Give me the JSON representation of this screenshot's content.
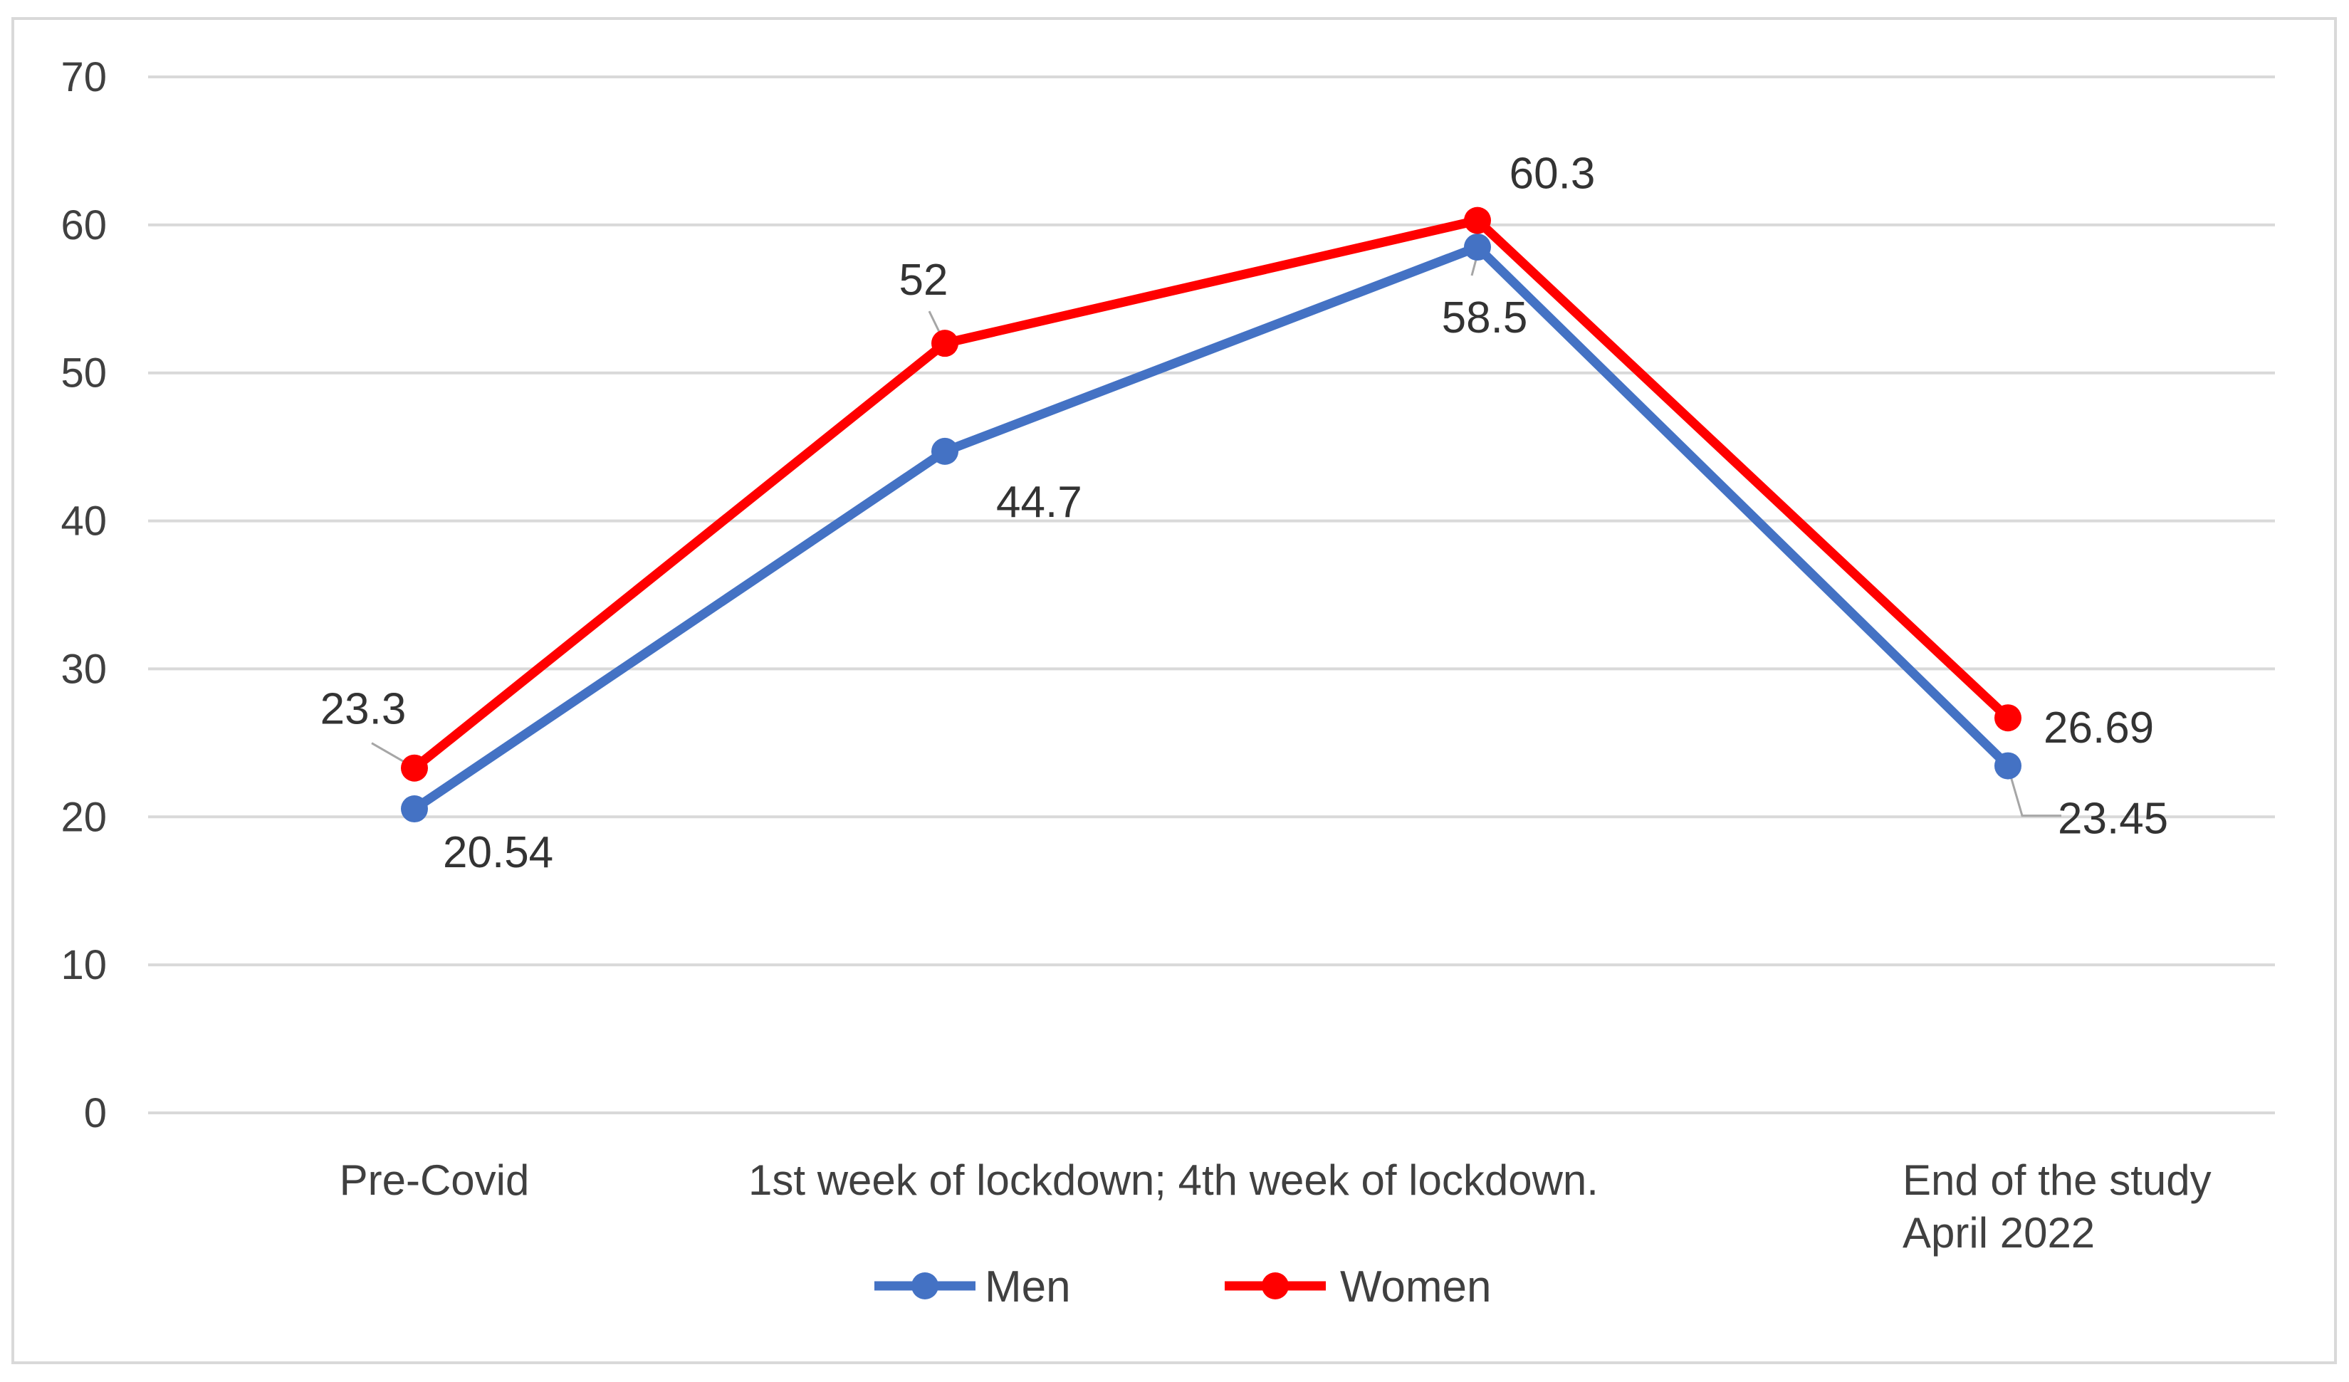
{
  "chart_data": {
    "type": "line",
    "categories": [
      [
        "Pre-Covid"
      ],
      [
        "1st week of lockdown;"
      ],
      [
        "4th week of lockdown."
      ],
      [
        "End of the study",
        "April 2022"
      ]
    ],
    "series": [
      {
        "name": "Men",
        "color": "#4472C4",
        "values": [
          20.54,
          44.7,
          58.5,
          23.45
        ],
        "labels": [
          "20.54",
          "44.7",
          "58.5",
          "23.45"
        ]
      },
      {
        "name": "Women",
        "color": "#FF0000",
        "values": [
          23.3,
          52,
          60.3,
          26.69
        ],
        "labels": [
          "23.3",
          "52",
          "60.3",
          "26.69"
        ]
      }
    ],
    "ylim": [
      0,
      70
    ],
    "yticks": [
      0,
      10,
      20,
      30,
      40,
      50,
      60,
      70
    ],
    "grid": true,
    "legend": "bottom-center"
  }
}
